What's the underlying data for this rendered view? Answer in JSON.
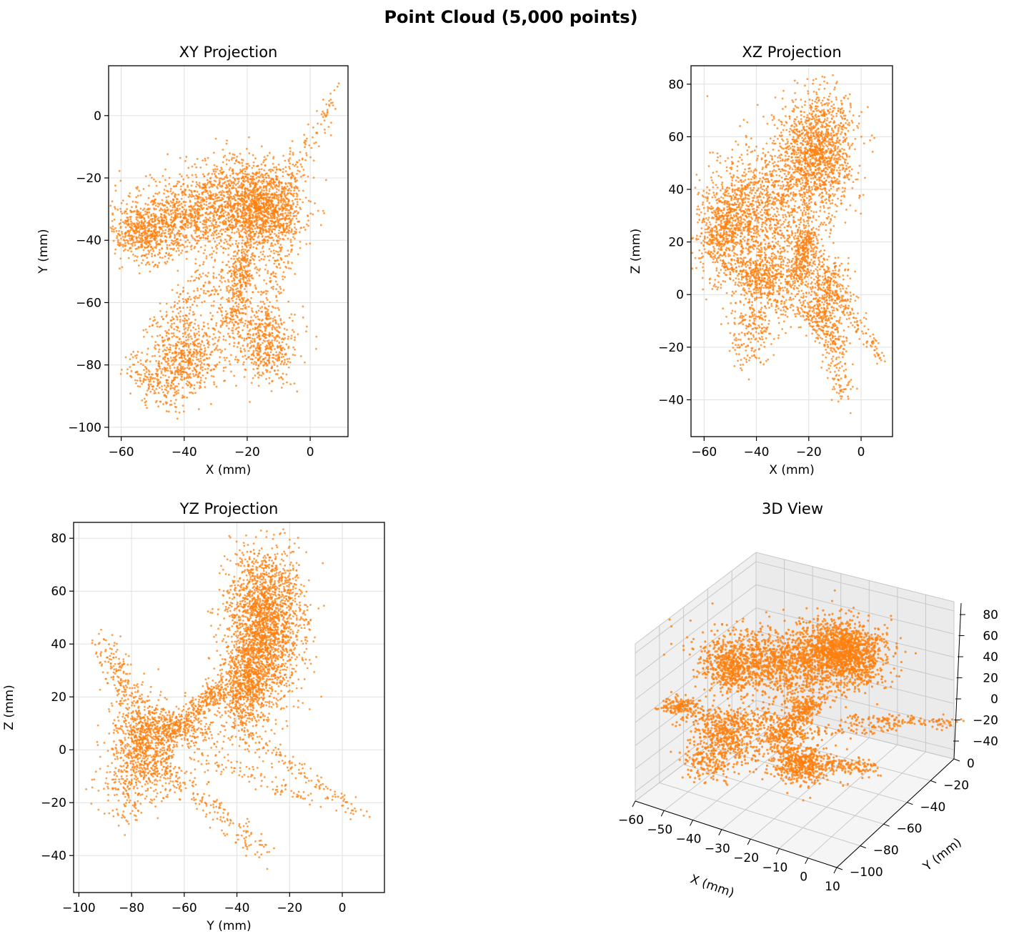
{
  "suptitle": "Point Cloud (5,000 points)",
  "colors": {
    "points": "#ff7f0e",
    "grid": "#e0e0e0",
    "axis": "#000000",
    "pane": "#f2f2f2",
    "pane_line": "#c8c8c8"
  },
  "chart_data": [
    {
      "type": "scatter",
      "title": "XY Projection",
      "xlabel": "X (mm)",
      "ylabel": "Y (mm)",
      "xlim": [
        -64,
        12
      ],
      "ylim": [
        -103,
        16
      ],
      "xticks": [
        -60,
        -40,
        -20,
        0
      ],
      "yticks": [
        0,
        -20,
        -40,
        -60,
        -80,
        -100
      ],
      "xtick_labels": [
        "−60",
        "−40",
        "−20",
        "0"
      ],
      "ytick_labels": [
        "0",
        "−20",
        "−40",
        "−60",
        "−80",
        "−100"
      ],
      "grid": true,
      "x_range_of_points": [
        -62,
        8
      ],
      "y_range_of_points": [
        -97,
        10
      ]
    },
    {
      "type": "scatter",
      "title": "XZ Projection",
      "xlabel": "X (mm)",
      "ylabel": "Z (mm)",
      "xlim": [
        -65,
        12
      ],
      "ylim": [
        -54,
        87
      ],
      "xticks": [
        -60,
        -40,
        -20,
        0
      ],
      "yticks": [
        80,
        60,
        40,
        20,
        0,
        -20,
        -40
      ],
      "xtick_labels": [
        "−60",
        "−40",
        "−20",
        "0"
      ],
      "ytick_labels": [
        "80",
        "60",
        "40",
        "20",
        "0",
        "−20",
        "−40"
      ],
      "grid": true,
      "x_range_of_points": [
        -62,
        8
      ],
      "z_range_of_points": [
        -48,
        80
      ]
    },
    {
      "type": "scatter",
      "title": "YZ Projection",
      "xlabel": "Y (mm)",
      "ylabel": "Z (mm)",
      "xlim": [
        -102,
        16
      ],
      "ylim": [
        -54,
        86
      ],
      "xticks": [
        -100,
        -80,
        -60,
        -40,
        -20,
        0
      ],
      "yticks": [
        80,
        60,
        40,
        20,
        0,
        -20,
        -40
      ],
      "xtick_labels": [
        "−100",
        "−80",
        "−60",
        "−40",
        "−20",
        "0"
      ],
      "ytick_labels": [
        "80",
        "60",
        "40",
        "20",
        "0",
        "−20",
        "−40"
      ],
      "grid": true,
      "y_range_of_points": [
        -97,
        10
      ],
      "z_range_of_points": [
        -48,
        80
      ]
    },
    {
      "type": "scatter",
      "title": "3D View",
      "xlabel": "X (mm)",
      "ylabel": "Y (mm)",
      "zlabel": "",
      "xticks": [
        -60,
        -50,
        -40,
        -30,
        -20,
        -10,
        0,
        10
      ],
      "yticks": [
        0,
        -20,
        -40,
        -60,
        -80,
        -100
      ],
      "zticks": [
        80,
        60,
        40,
        20,
        0,
        -20,
        -40
      ],
      "xtick_labels": [
        "−60",
        "−50",
        "−40",
        "−30",
        "−20",
        "−10",
        "0",
        "10"
      ],
      "ytick_labels": [
        "0",
        "−20",
        "−40",
        "−60",
        "−80",
        "−100"
      ],
      "ztick_labels": [
        "80",
        "60",
        "40",
        "20",
        "0",
        "−20",
        "−40"
      ],
      "grid": true
    }
  ]
}
